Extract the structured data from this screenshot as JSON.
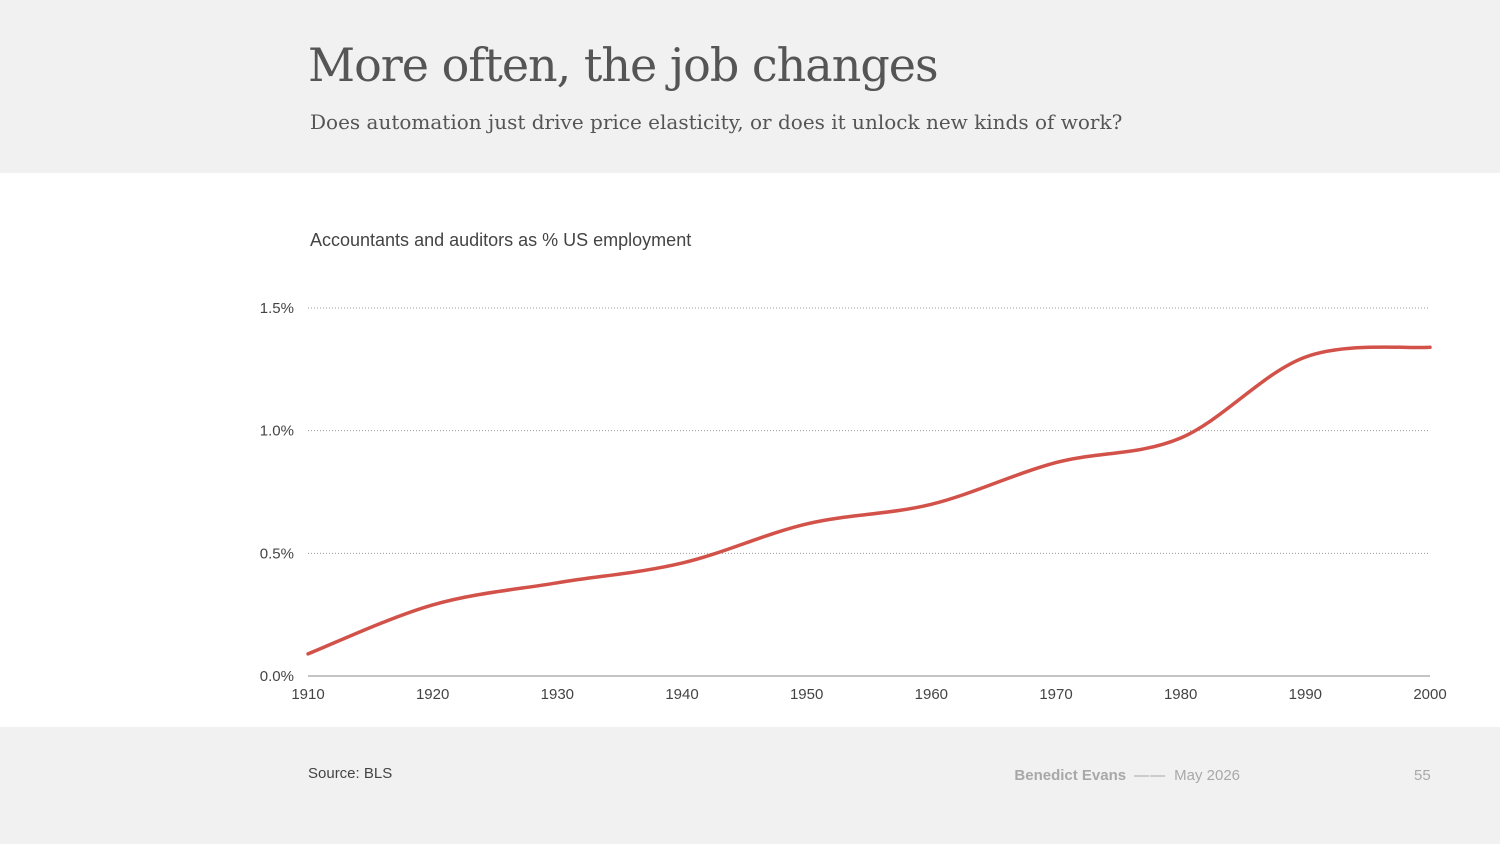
{
  "header": {
    "title": "More often, the job changes",
    "subtitle": "Does automation just drive price elasticity, or does it unlock new kinds of work?"
  },
  "chart_data": {
    "type": "line",
    "title": "Accountants and auditors as % US employment",
    "xlabel": "",
    "ylabel": "",
    "x": [
      1910,
      1920,
      1930,
      1940,
      1950,
      1960,
      1970,
      1980,
      1990,
      2000
    ],
    "series": [
      {
        "values": [
          0.09,
          0.29,
          0.38,
          0.46,
          0.62,
          0.7,
          0.87,
          0.97,
          1.3,
          1.34
        ]
      }
    ],
    "xlim": [
      1910,
      2000
    ],
    "ylim": [
      0,
      1.5
    ],
    "yticks": [
      0,
      0.5,
      1.0,
      1.5
    ],
    "ytick_labels": [
      "0.0%",
      "0.5%",
      "1.0%",
      "1.5%"
    ],
    "xticks": [
      1910,
      1920,
      1930,
      1940,
      1950,
      1960,
      1970,
      1980,
      1990,
      2000
    ],
    "xtick_labels": [
      "1910",
      "1920",
      "1930",
      "1940",
      "1950",
      "1960",
      "1970",
      "1980",
      "1990",
      "2000"
    ],
    "grid": true,
    "line_color": "#d2524a"
  },
  "footer": {
    "source": "Source: BLS",
    "author": "Benedict Evans",
    "separator": "——",
    "date": "May 2026",
    "page_number": "55"
  }
}
